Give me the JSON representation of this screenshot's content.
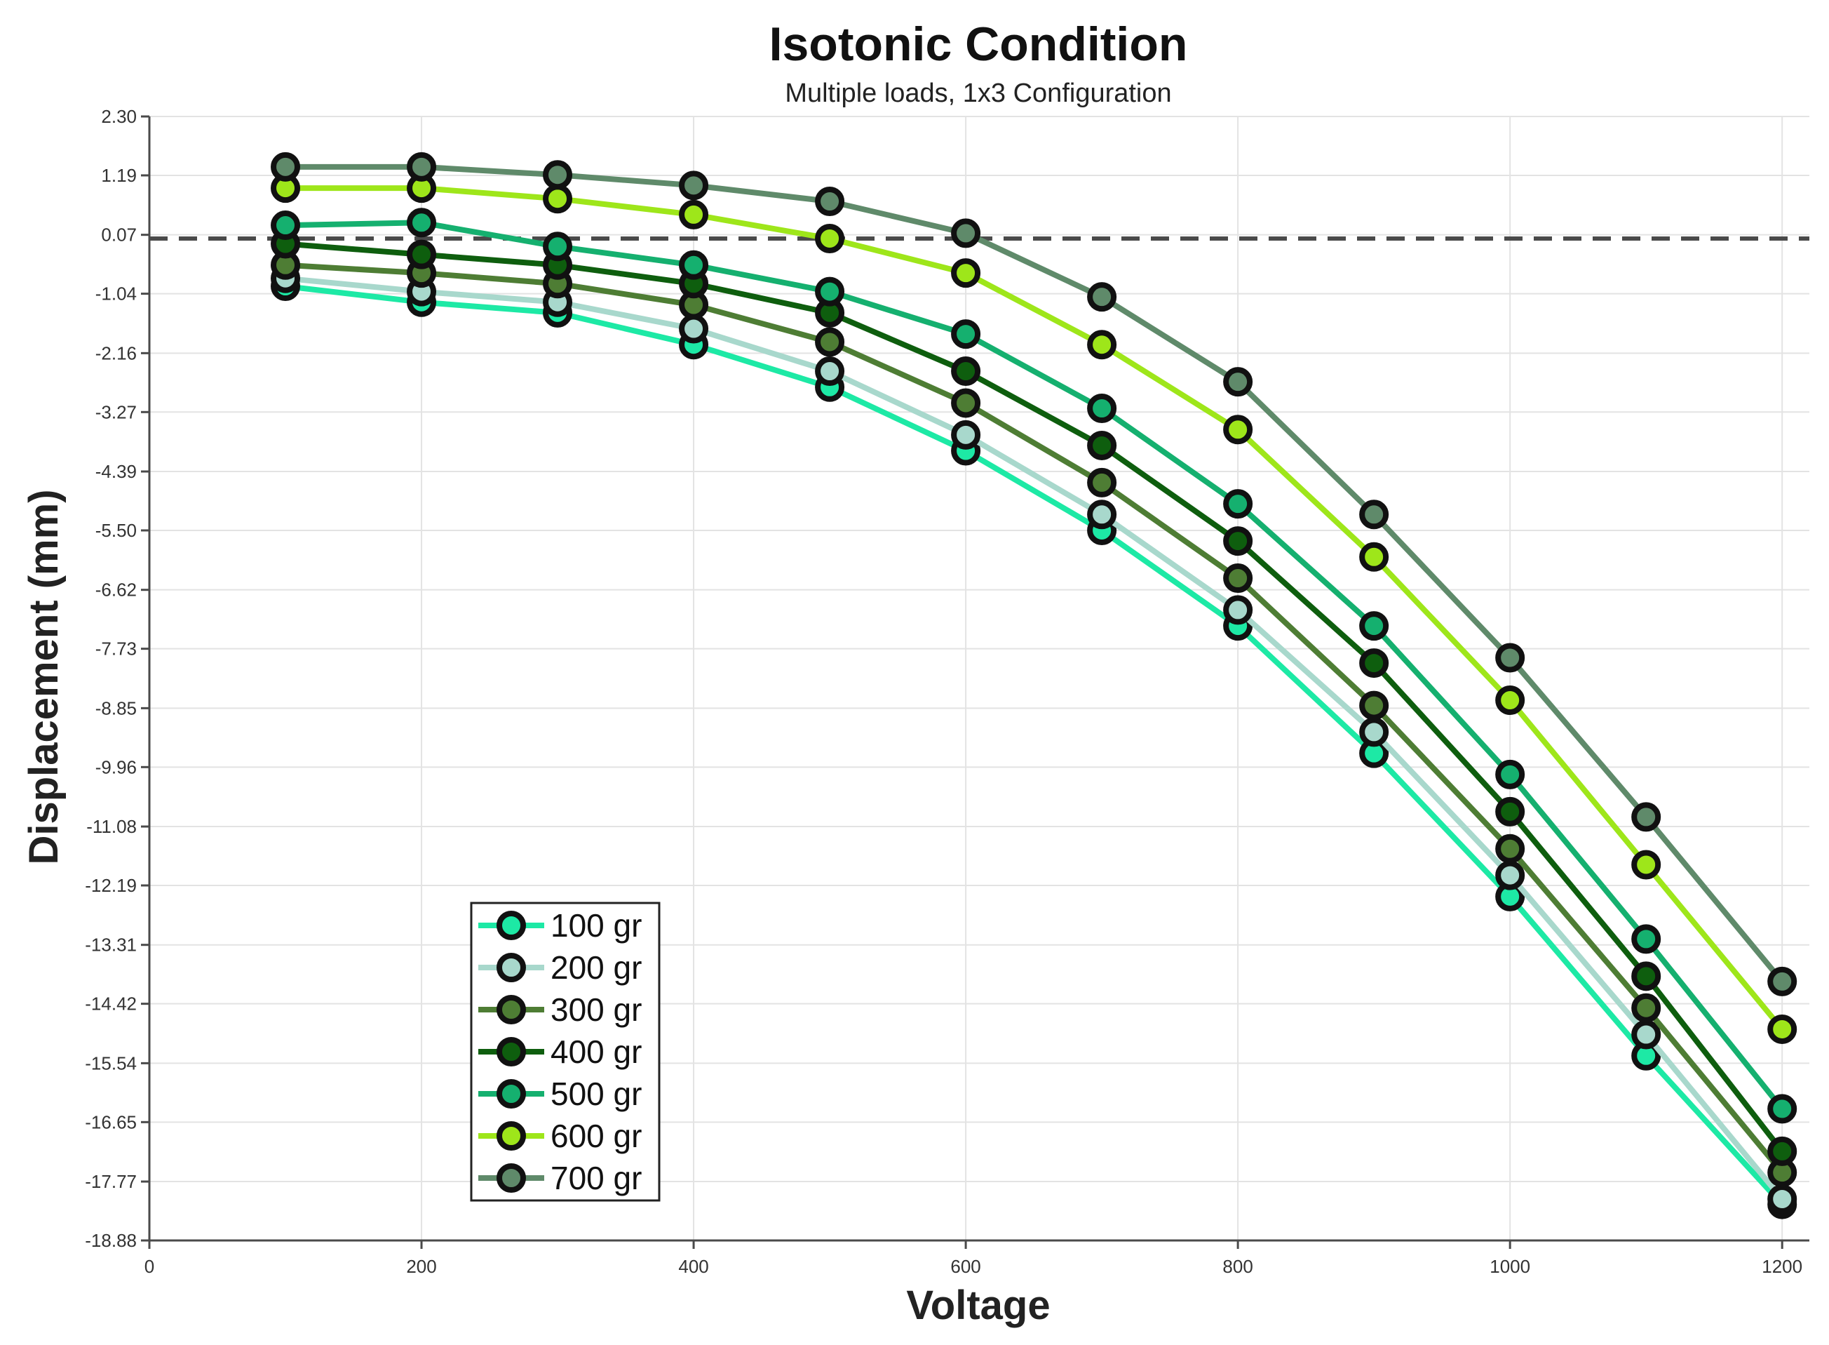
{
  "chart_data": {
    "type": "line",
    "title": "Isotonic  Condition",
    "subtitle": "Multiple  loads,    1x3  Configuration",
    "xlabel": "Voltage",
    "ylabel": "Displacement (mm)",
    "xlim": [
      0,
      1220
    ],
    "ylim": [
      -18.88,
      2.3
    ],
    "x_ticks": [
      "0",
      "200",
      "400",
      "600",
      "800",
      "1000",
      "1200"
    ],
    "x_tick_values": [
      0,
      200,
      400,
      600,
      800,
      1000,
      1200
    ],
    "y_ticks": [
      "2.30",
      "1.19",
      "0.07",
      "-1.04",
      "-2.16",
      "-3.27",
      "-4.39",
      "-5.50",
      "-6.62",
      "-7.73",
      "-8.85",
      "-9.96",
      "-11.08",
      "-12.19",
      "-13.31",
      "-14.42",
      "-15.54",
      "-16.65",
      "-17.77",
      "-18.88"
    ],
    "y_tick_values": [
      2.3,
      1.19,
      0.07,
      -1.04,
      -2.16,
      -3.27,
      -4.39,
      -5.5,
      -6.62,
      -7.73,
      -8.85,
      -9.96,
      -11.08,
      -12.19,
      -13.31,
      -14.42,
      -15.54,
      -16.65,
      -17.77,
      -18.88
    ],
    "reference_line": {
      "y": 0.0,
      "style": "dashed"
    },
    "grid": true,
    "legend_position": "bottom-left",
    "x": [
      100,
      200,
      300,
      400,
      500,
      600,
      700,
      800,
      900,
      1000,
      1100,
      1200
    ],
    "series": [
      {
        "name": "100 gr",
        "color": "#1de9a5",
        "values": [
          -0.9,
          -1.2,
          -1.4,
          -2.0,
          -2.8,
          -4.0,
          -5.5,
          -7.3,
          -9.7,
          -12.4,
          -15.4,
          -18.2
        ]
      },
      {
        "name": "200 gr",
        "color": "#a8d8cc",
        "values": [
          -0.75,
          -1.0,
          -1.2,
          -1.7,
          -2.5,
          -3.7,
          -5.2,
          -7.0,
          -9.3,
          -12.0,
          -15.0,
          -18.1
        ]
      },
      {
        "name": "300 gr",
        "color": "#4e7d34",
        "values": [
          -0.5,
          -0.65,
          -0.85,
          -1.25,
          -1.95,
          -3.1,
          -4.6,
          -6.4,
          -8.8,
          -11.5,
          -14.5,
          -17.6
        ]
      },
      {
        "name": "400 gr",
        "color": "#0e5e0e",
        "values": [
          -0.1,
          -0.3,
          -0.5,
          -0.85,
          -1.4,
          -2.5,
          -3.9,
          -5.7,
          -8.0,
          -10.8,
          -13.9,
          -17.2
        ]
      },
      {
        "name": "500 gr",
        "color": "#15b06f",
        "values": [
          0.25,
          0.3,
          -0.15,
          -0.5,
          -1.0,
          -1.8,
          -3.2,
          -5.0,
          -7.3,
          -10.1,
          -13.2,
          -16.4
        ]
      },
      {
        "name": "600 gr",
        "color": "#9ee61a",
        "values": [
          0.95,
          0.95,
          0.75,
          0.45,
          0.0,
          -0.65,
          -2.0,
          -3.6,
          -6.0,
          -8.7,
          -11.8,
          -14.9
        ]
      },
      {
        "name": "700 gr",
        "color": "#5f8a6a",
        "values": [
          1.35,
          1.35,
          1.2,
          1.0,
          0.7,
          0.1,
          -1.1,
          -2.7,
          -5.2,
          -7.9,
          -10.9,
          -14.0
        ]
      }
    ]
  }
}
